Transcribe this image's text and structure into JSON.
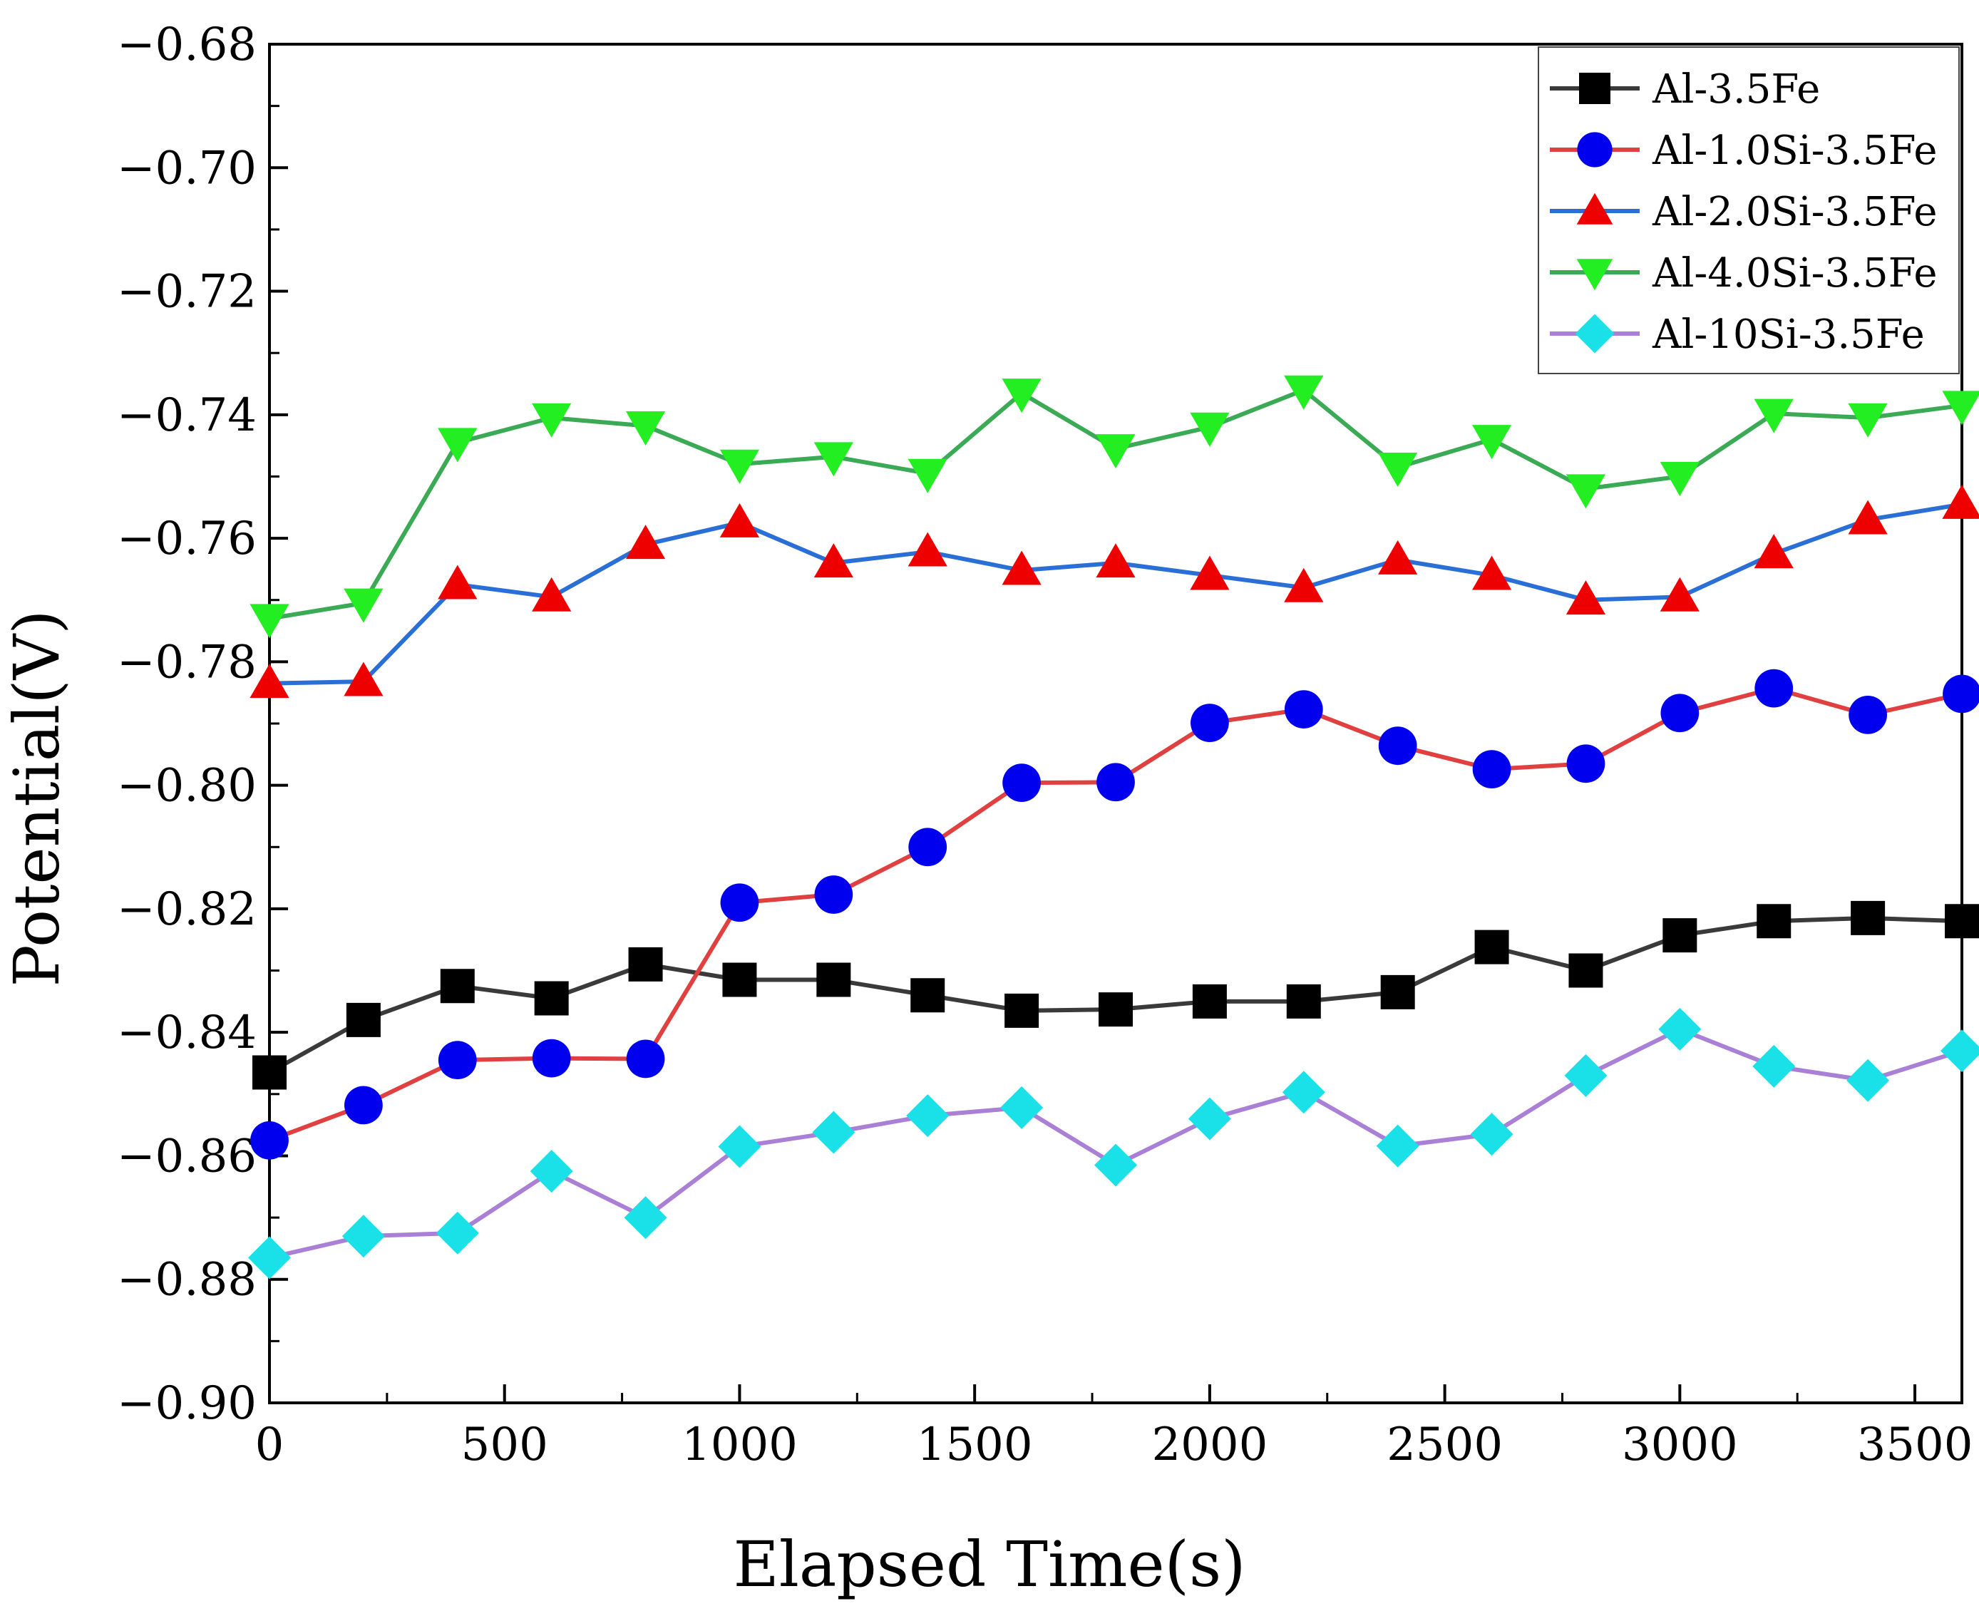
{
  "chart_data": {
    "type": "line",
    "title": "",
    "xlabel": "Elapsed Time(s)",
    "ylabel": "Potential(V)",
    "xlim": [
      0,
      3600
    ],
    "ylim": [
      -0.9,
      -0.68
    ],
    "x_ticks": [
      0,
      500,
      1000,
      1500,
      2000,
      2500,
      3000,
      3500
    ],
    "x_tick_labels": [
      "0",
      "500",
      "1000",
      "1500",
      "2000",
      "2500",
      "3000",
      "3500"
    ],
    "y_ticks": [
      -0.68,
      -0.7,
      -0.72,
      -0.74,
      -0.76,
      -0.78,
      -0.8,
      -0.82,
      -0.84,
      -0.86,
      -0.88,
      -0.9
    ],
    "y_tick_labels": [
      "−0.68",
      "−0.70",
      "−0.72",
      "−0.74",
      "−0.76",
      "−0.78",
      "−0.80",
      "−0.82",
      "−0.84",
      "−0.86",
      "−0.88",
      "−0.90"
    ],
    "grid": false,
    "legend_position": "top-right",
    "x": [
      0,
      200,
      400,
      600,
      800,
      1000,
      1200,
      1400,
      1600,
      1800,
      2000,
      2200,
      2400,
      2600,
      2800,
      3000,
      3200,
      3400,
      3600
    ],
    "series": [
      {
        "name": "Al-3.5Fe",
        "line_color": "#3a3a3a",
        "marker": "square",
        "marker_color": "#000000",
        "values": [
          -0.8465,
          -0.838,
          -0.8325,
          -0.8345,
          -0.829,
          -0.8315,
          -0.8315,
          -0.834,
          -0.8365,
          -0.8363,
          -0.835,
          -0.835,
          -0.8335,
          -0.8262,
          -0.83,
          -0.8243,
          -0.822,
          -0.8215,
          -0.822
        ]
      },
      {
        "name": "Al-1.0Si-3.5Fe",
        "line_color": "#e04040",
        "marker": "circle",
        "marker_color": "#0000ee",
        "values": [
          -0.8575,
          -0.8518,
          -0.8445,
          -0.8442,
          -0.8443,
          -0.819,
          -0.8177,
          -0.81,
          -0.7996,
          -0.7995,
          -0.7899,
          -0.7877,
          -0.7936,
          -0.7974,
          -0.7965,
          -0.7883,
          -0.7843,
          -0.7886,
          -0.7852
        ]
      },
      {
        "name": "Al-2.0Si-3.5Fe",
        "line_color": "#2a6fd6",
        "marker": "triangle-up",
        "marker_color": "#ee0000",
        "values": [
          -0.7835,
          -0.7832,
          -0.7675,
          -0.7695,
          -0.761,
          -0.7575,
          -0.764,
          -0.7622,
          -0.7652,
          -0.764,
          -0.766,
          -0.768,
          -0.7635,
          -0.766,
          -0.77,
          -0.7695,
          -0.7625,
          -0.757,
          -0.7545
        ]
      },
      {
        "name": "Al-4.0Si-3.5Fe",
        "line_color": "#3aaa55",
        "marker": "triangle-down",
        "marker_color": "#22ee22",
        "values": [
          -0.773,
          -0.7705,
          -0.7445,
          -0.7405,
          -0.7418,
          -0.748,
          -0.7468,
          -0.7495,
          -0.7365,
          -0.7455,
          -0.742,
          -0.736,
          -0.7485,
          -0.744,
          -0.752,
          -0.75,
          -0.7398,
          -0.7405,
          -0.7385
        ]
      },
      {
        "name": "Al-10Si-3.5Fe",
        "line_color": "#aa7fd6",
        "marker": "diamond",
        "marker_color": "#1ae0e8",
        "values": [
          -0.8765,
          -0.873,
          -0.8725,
          -0.8625,
          -0.87,
          -0.8585,
          -0.8562,
          -0.8535,
          -0.8522,
          -0.8615,
          -0.854,
          -0.8497,
          -0.8584,
          -0.8565,
          -0.847,
          -0.8395,
          -0.8455,
          -0.8478,
          -0.843
        ]
      }
    ]
  }
}
